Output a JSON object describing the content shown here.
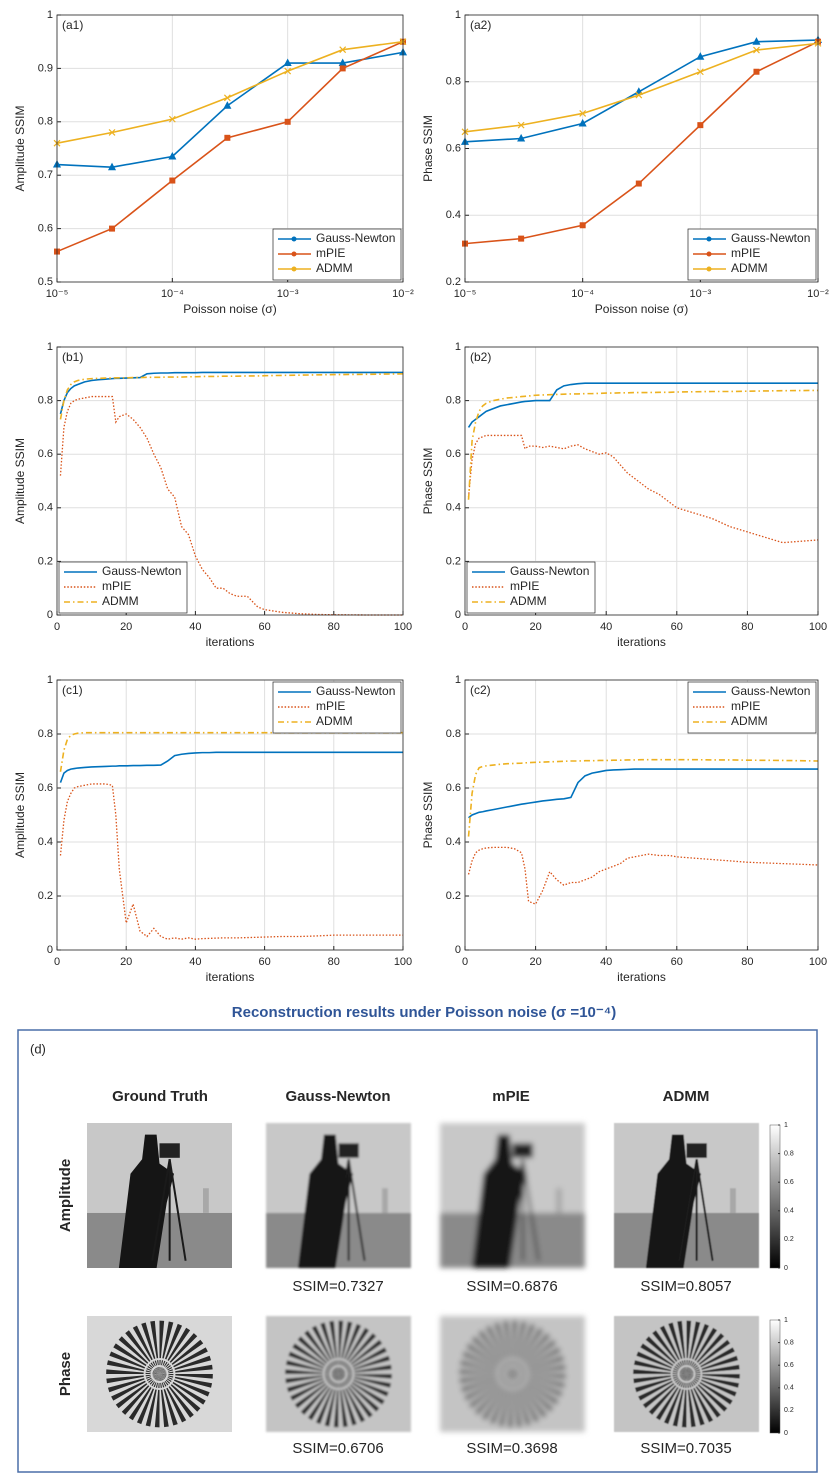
{
  "chart_data": [
    {
      "type": "line",
      "panel_label": "(a1)",
      "xlabel": "Poisson noise (σ)",
      "ylabel": "Amplitude SSIM",
      "xscale": "log",
      "grid": true,
      "legend": "lower right",
      "x": [
        1e-05,
        3e-05,
        0.0001,
        0.0003,
        0.001,
        0.003,
        0.01
      ],
      "xlim": [
        1e-05,
        0.01
      ],
      "xticks": [
        {
          "value": 1e-05,
          "label": "10⁻⁵"
        },
        {
          "value": 0.0001,
          "label": "10⁻⁴"
        },
        {
          "value": 0.001,
          "label": "10⁻³"
        },
        {
          "value": 0.01,
          "label": "10⁻²"
        }
      ],
      "ylim": [
        0.5,
        1
      ],
      "yticks": [
        0.5,
        0.6,
        0.7,
        0.8,
        0.9,
        1
      ],
      "series": [
        {
          "name": "Gauss-Newton",
          "color": "#0072bd",
          "linestyle": "solid",
          "marker": "triangle",
          "values": [
            0.72,
            0.715,
            0.735,
            0.83,
            0.91,
            0.91,
            0.93
          ]
        },
        {
          "name": "mPIE",
          "color": "#d95319",
          "linestyle": "solid",
          "marker": "square",
          "values": [
            0.557,
            0.6,
            0.69,
            0.77,
            0.8,
            0.9,
            0.95
          ]
        },
        {
          "name": "ADMM",
          "color": "#edb120",
          "linestyle": "solid",
          "marker": "x",
          "values": [
            0.76,
            0.78,
            0.805,
            0.845,
            0.895,
            0.935,
            0.95
          ]
        }
      ]
    },
    {
      "type": "line",
      "panel_label": "(a2)",
      "xlabel": "Poisson noise (σ)",
      "ylabel": "Phase SSIM",
      "xscale": "log",
      "grid": true,
      "legend": "lower right",
      "x": [
        1e-05,
        3e-05,
        0.0001,
        0.0003,
        0.001,
        0.003,
        0.01
      ],
      "xlim": [
        1e-05,
        0.01
      ],
      "xticks": [
        {
          "value": 1e-05,
          "label": "10⁻⁵"
        },
        {
          "value": 0.0001,
          "label": "10⁻⁴"
        },
        {
          "value": 0.001,
          "label": "10⁻³"
        },
        {
          "value": 0.01,
          "label": "10⁻²"
        }
      ],
      "ylim": [
        0.2,
        1
      ],
      "yticks": [
        0.2,
        0.4,
        0.6,
        0.8,
        1
      ],
      "series": [
        {
          "name": "Gauss-Newton",
          "color": "#0072bd",
          "linestyle": "solid",
          "marker": "triangle",
          "values": [
            0.62,
            0.63,
            0.675,
            0.77,
            0.875,
            0.92,
            0.925
          ]
        },
        {
          "name": "mPIE",
          "color": "#d95319",
          "linestyle": "solid",
          "marker": "square",
          "values": [
            0.315,
            0.33,
            0.37,
            0.495,
            0.67,
            0.83,
            0.92
          ]
        },
        {
          "name": "ADMM",
          "color": "#edb120",
          "linestyle": "solid",
          "marker": "x",
          "values": [
            0.65,
            0.67,
            0.705,
            0.76,
            0.83,
            0.895,
            0.915
          ]
        }
      ]
    },
    {
      "type": "line",
      "panel_label": "(b1)",
      "xlabel": "iterations",
      "ylabel": "Amplitude SSIM",
      "grid": true,
      "legend": "lower left",
      "x": [
        1,
        2,
        3,
        4,
        5,
        6,
        8,
        10,
        12,
        14,
        16,
        17,
        18,
        20,
        22,
        24,
        26,
        28,
        30,
        32,
        34,
        36,
        38,
        40,
        42,
        44,
        46,
        48,
        50,
        52,
        55,
        58,
        60,
        65,
        70,
        75,
        80,
        90,
        100
      ],
      "xlim": [
        0,
        100
      ],
      "xticks": [
        0,
        20,
        40,
        60,
        80,
        100
      ],
      "ylim": [
        0,
        1
      ],
      "yticks": [
        0,
        0.2,
        0.4,
        0.6,
        0.8,
        1
      ],
      "series": [
        {
          "name": "Gauss-Newton",
          "color": "#0072bd",
          "linestyle": "solid",
          "values": [
            0.75,
            0.8,
            0.83,
            0.845,
            0.855,
            0.86,
            0.87,
            0.875,
            0.878,
            0.88,
            0.882,
            0.883,
            0.883,
            0.884,
            0.885,
            0.886,
            0.9,
            0.902,
            0.903,
            0.903,
            0.904,
            0.904,
            0.904,
            0.904,
            0.905,
            0.905,
            0.905,
            0.905,
            0.905,
            0.905,
            0.905,
            0.905,
            0.905,
            0.905,
            0.905,
            0.905,
            0.905,
            0.905,
            0.905
          ]
        },
        {
          "name": "mPIE",
          "color": "#d95319",
          "linestyle": "dotted",
          "values": [
            0.52,
            0.7,
            0.76,
            0.79,
            0.8,
            0.805,
            0.81,
            0.815,
            0.815,
            0.815,
            0.815,
            0.72,
            0.74,
            0.75,
            0.73,
            0.7,
            0.66,
            0.6,
            0.55,
            0.47,
            0.44,
            0.33,
            0.3,
            0.22,
            0.17,
            0.14,
            0.1,
            0.1,
            0.08,
            0.07,
            0.07,
            0.03,
            0.02,
            0.01,
            0.005,
            0.002,
            0.001,
            0,
            0
          ]
        },
        {
          "name": "ADMM",
          "color": "#edb120",
          "linestyle": "dashdot",
          "values": [
            0.73,
            0.8,
            0.84,
            0.86,
            0.87,
            0.875,
            0.88,
            0.882,
            0.883,
            0.884,
            0.884,
            0.885,
            0.885,
            0.885,
            0.886,
            0.886,
            0.887,
            0.887,
            0.887,
            0.888,
            0.888,
            0.888,
            0.889,
            0.889,
            0.89,
            0.89,
            0.89,
            0.891,
            0.891,
            0.891,
            0.892,
            0.892,
            0.893,
            0.894,
            0.895,
            0.896,
            0.897,
            0.898,
            0.9
          ]
        }
      ]
    },
    {
      "type": "line",
      "panel_label": "(b2)",
      "xlabel": "iterations",
      "ylabel": "Phase SSIM",
      "grid": true,
      "legend": "lower left",
      "x": [
        1,
        2,
        3,
        4,
        5,
        6,
        8,
        10,
        12,
        14,
        16,
        17,
        18,
        20,
        22,
        24,
        26,
        28,
        30,
        32,
        34,
        36,
        38,
        40,
        42,
        44,
        46,
        48,
        50,
        52,
        55,
        58,
        60,
        65,
        70,
        75,
        80,
        90,
        100
      ],
      "xlim": [
        0,
        100
      ],
      "xticks": [
        0,
        20,
        40,
        60,
        80,
        100
      ],
      "ylim": [
        0,
        1
      ],
      "yticks": [
        0,
        0.2,
        0.4,
        0.6,
        0.8,
        1
      ],
      "series": [
        {
          "name": "Gauss-Newton",
          "color": "#0072bd",
          "linestyle": "solid",
          "values": [
            0.7,
            0.72,
            0.73,
            0.74,
            0.75,
            0.76,
            0.77,
            0.78,
            0.785,
            0.79,
            0.795,
            0.797,
            0.798,
            0.8,
            0.8,
            0.8,
            0.84,
            0.855,
            0.86,
            0.863,
            0.865,
            0.865,
            0.865,
            0.865,
            0.865,
            0.865,
            0.865,
            0.865,
            0.865,
            0.865,
            0.865,
            0.865,
            0.865,
            0.865,
            0.865,
            0.865,
            0.865,
            0.865,
            0.865
          ]
        },
        {
          "name": "mPIE",
          "color": "#d95319",
          "linestyle": "dotted",
          "values": [
            0.44,
            0.58,
            0.64,
            0.66,
            0.665,
            0.67,
            0.67,
            0.67,
            0.67,
            0.67,
            0.67,
            0.62,
            0.63,
            0.63,
            0.625,
            0.63,
            0.625,
            0.62,
            0.63,
            0.635,
            0.62,
            0.61,
            0.6,
            0.605,
            0.59,
            0.56,
            0.53,
            0.51,
            0.49,
            0.47,
            0.45,
            0.42,
            0.4,
            0.38,
            0.36,
            0.33,
            0.31,
            0.27,
            0.28
          ]
        },
        {
          "name": "ADMM",
          "color": "#edb120",
          "linestyle": "dashdot",
          "values": [
            0.43,
            0.65,
            0.72,
            0.76,
            0.78,
            0.79,
            0.8,
            0.805,
            0.81,
            0.812,
            0.815,
            0.816,
            0.817,
            0.82,
            0.821,
            0.822,
            0.823,
            0.824,
            0.825,
            0.825,
            0.826,
            0.826,
            0.827,
            0.828,
            0.828,
            0.829,
            0.829,
            0.83,
            0.83,
            0.83,
            0.831,
            0.831,
            0.832,
            0.833,
            0.834,
            0.834,
            0.835,
            0.837,
            0.838
          ]
        }
      ]
    },
    {
      "type": "line",
      "panel_label": "(c1)",
      "xlabel": "iterations",
      "ylabel": "Amplitude SSIM",
      "grid": true,
      "legend": "upper right",
      "x": [
        1,
        2,
        3,
        4,
        5,
        6,
        8,
        10,
        12,
        14,
        16,
        17,
        18,
        20,
        22,
        24,
        26,
        28,
        30,
        32,
        34,
        36,
        38,
        40,
        42,
        44,
        46,
        48,
        50,
        52,
        55,
        58,
        60,
        65,
        70,
        75,
        80,
        90,
        100
      ],
      "xlim": [
        0,
        100
      ],
      "xticks": [
        0,
        20,
        40,
        60,
        80,
        100
      ],
      "ylim": [
        0,
        1
      ],
      "yticks": [
        0,
        0.2,
        0.4,
        0.6,
        0.8,
        1
      ],
      "series": [
        {
          "name": "Gauss-Newton",
          "color": "#0072bd",
          "linestyle": "solid",
          "values": [
            0.62,
            0.655,
            0.665,
            0.67,
            0.672,
            0.674,
            0.676,
            0.678,
            0.679,
            0.68,
            0.681,
            0.681,
            0.682,
            0.682,
            0.683,
            0.683,
            0.684,
            0.684,
            0.685,
            0.7,
            0.72,
            0.725,
            0.728,
            0.73,
            0.731,
            0.731,
            0.732,
            0.732,
            0.732,
            0.732,
            0.732,
            0.732,
            0.732,
            0.732,
            0.732,
            0.732,
            0.732,
            0.732,
            0.732
          ]
        },
        {
          "name": "mPIE",
          "color": "#d95319",
          "linestyle": "dotted",
          "values": [
            0.35,
            0.48,
            0.55,
            0.58,
            0.6,
            0.605,
            0.61,
            0.615,
            0.615,
            0.615,
            0.61,
            0.5,
            0.3,
            0.1,
            0.17,
            0.07,
            0.05,
            0.08,
            0.05,
            0.04,
            0.045,
            0.04,
            0.045,
            0.04,
            0.042,
            0.043,
            0.044,
            0.045,
            0.045,
            0.045,
            0.046,
            0.047,
            0.048,
            0.05,
            0.05,
            0.052,
            0.055,
            0.055,
            0.055
          ]
        },
        {
          "name": "ADMM",
          "color": "#edb120",
          "linestyle": "dashdot",
          "values": [
            0.66,
            0.74,
            0.78,
            0.795,
            0.8,
            0.803,
            0.805,
            0.805,
            0.805,
            0.805,
            0.805,
            0.805,
            0.805,
            0.805,
            0.805,
            0.805,
            0.805,
            0.805,
            0.805,
            0.805,
            0.805,
            0.805,
            0.805,
            0.805,
            0.805,
            0.805,
            0.805,
            0.805,
            0.805,
            0.805,
            0.805,
            0.805,
            0.805,
            0.805,
            0.805,
            0.805,
            0.805,
            0.805,
            0.805
          ]
        }
      ]
    },
    {
      "type": "line",
      "panel_label": "(c2)",
      "xlabel": "iterations",
      "ylabel": "Phase SSIM",
      "grid": true,
      "legend": "upper right",
      "x": [
        1,
        2,
        3,
        4,
        5,
        6,
        8,
        10,
        12,
        14,
        16,
        17,
        18,
        20,
        22,
        24,
        26,
        28,
        30,
        32,
        34,
        36,
        38,
        40,
        42,
        44,
        46,
        48,
        50,
        52,
        55,
        58,
        60,
        65,
        70,
        75,
        80,
        90,
        100
      ],
      "xlim": [
        0,
        100
      ],
      "xticks": [
        0,
        20,
        40,
        60,
        80,
        100
      ],
      "ylim": [
        0,
        1
      ],
      "yticks": [
        0,
        0.2,
        0.4,
        0.6,
        0.8,
        1
      ],
      "series": [
        {
          "name": "Gauss-Newton",
          "color": "#0072bd",
          "linestyle": "solid",
          "values": [
            0.49,
            0.5,
            0.505,
            0.51,
            0.512,
            0.515,
            0.52,
            0.525,
            0.53,
            0.535,
            0.54,
            0.542,
            0.544,
            0.548,
            0.552,
            0.555,
            0.558,
            0.56,
            0.565,
            0.62,
            0.645,
            0.655,
            0.66,
            0.665,
            0.667,
            0.668,
            0.669,
            0.67,
            0.67,
            0.67,
            0.67,
            0.67,
            0.67,
            0.67,
            0.67,
            0.67,
            0.67,
            0.67,
            0.67
          ]
        },
        {
          "name": "mPIE",
          "color": "#d95319",
          "linestyle": "dotted",
          "values": [
            0.28,
            0.33,
            0.36,
            0.37,
            0.375,
            0.378,
            0.38,
            0.38,
            0.38,
            0.375,
            0.36,
            0.3,
            0.18,
            0.17,
            0.22,
            0.29,
            0.26,
            0.24,
            0.25,
            0.25,
            0.26,
            0.27,
            0.29,
            0.3,
            0.31,
            0.32,
            0.34,
            0.345,
            0.35,
            0.355,
            0.35,
            0.35,
            0.345,
            0.34,
            0.335,
            0.33,
            0.325,
            0.32,
            0.315
          ]
        },
        {
          "name": "ADMM",
          "color": "#edb120",
          "linestyle": "dashdot",
          "values": [
            0.42,
            0.58,
            0.65,
            0.675,
            0.68,
            0.682,
            0.685,
            0.688,
            0.69,
            0.691,
            0.692,
            0.693,
            0.694,
            0.695,
            0.696,
            0.697,
            0.698,
            0.699,
            0.7,
            0.7,
            0.701,
            0.701,
            0.702,
            0.702,
            0.703,
            0.703,
            0.704,
            0.704,
            0.705,
            0.705,
            0.705,
            0.705,
            0.705,
            0.705,
            0.704,
            0.704,
            0.703,
            0.702,
            0.7
          ]
        }
      ]
    }
  ],
  "panel_d": {
    "title": "Reconstruction results under Poisson noise (σ =10⁻⁴)",
    "label": "(d)",
    "columns": [
      "Ground Truth",
      "Gauss-Newton",
      "mPIE",
      "ADMM"
    ],
    "rows": [
      "Amplitude",
      "Phase"
    ],
    "ssim": [
      [
        "SSIM=0.7327",
        "SSIM=0.6876",
        "SSIM=0.8057"
      ],
      [
        "SSIM=0.6706",
        "SSIM=0.3698",
        "SSIM=0.7035"
      ]
    ],
    "colorbar_ticks": [
      1,
      0.8,
      0.6,
      0.4,
      0.2,
      0
    ]
  }
}
